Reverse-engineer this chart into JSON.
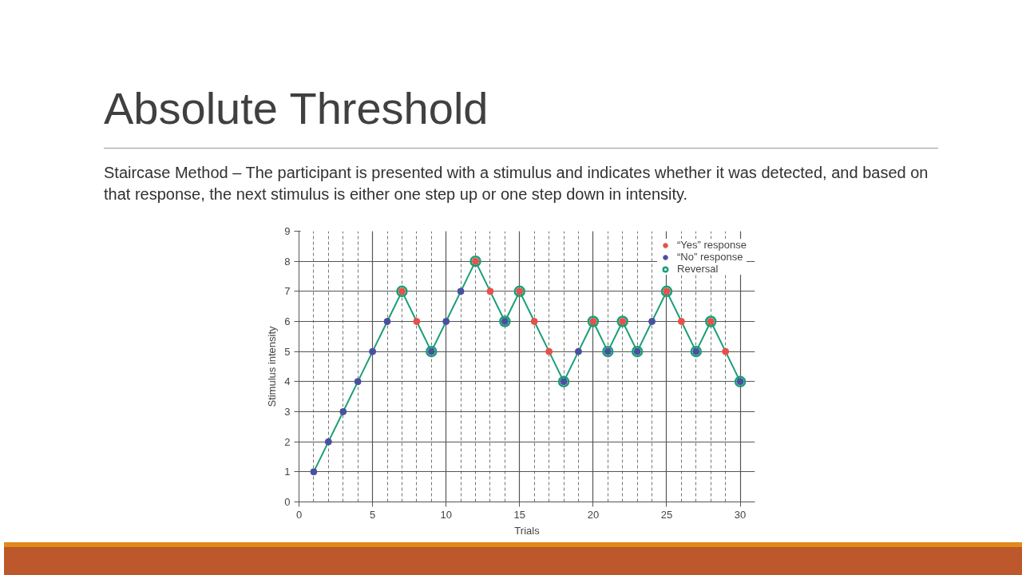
{
  "chart_data": {
    "type": "line",
    "title": "Absolute Threshold",
    "subtitle": "Staircase Method – The participant is presented with a stimulus and indicates whether it was detected, and based on that response, the next stimulus is either one step up or one step down in intensity.",
    "xlabel": "Trials",
    "ylabel": "Stimulus intensity",
    "xlim": [
      0,
      31
    ],
    "ylim": [
      0,
      9
    ],
    "xticks": [
      0,
      5,
      10,
      15,
      20,
      25,
      30
    ],
    "yticks": [
      0,
      1,
      2,
      3,
      4,
      5,
      6,
      7,
      8,
      9
    ],
    "grid": true,
    "legend": "top right",
    "series": [
      {
        "color": "#1a9e77",
        "marker": "none",
        "x": [
          1,
          2,
          3,
          4,
          5,
          6,
          7,
          8,
          9,
          10,
          11,
          12,
          13,
          14,
          15,
          16,
          17,
          18,
          19,
          20,
          21,
          22,
          23,
          24,
          25,
          26,
          27,
          28,
          29,
          30
        ],
        "values": [
          1,
          2,
          3,
          4,
          5,
          6,
          7,
          6,
          5,
          6,
          7,
          8,
          7,
          6,
          7,
          6,
          5,
          4,
          5,
          6,
          5,
          6,
          5,
          6,
          7,
          6,
          5,
          6,
          5,
          4
        ]
      },
      {
        "type": "scatter",
        "name": "“Yes” response",
        "color": "#e8504a",
        "marker": "circle",
        "x": [
          7,
          8,
          12,
          13,
          15,
          16,
          17,
          20,
          22,
          25,
          26,
          28,
          29
        ],
        "values": [
          7,
          6,
          8,
          7,
          7,
          6,
          5,
          6,
          6,
          7,
          6,
          6,
          5
        ]
      },
      {
        "type": "scatter",
        "name": "“No” response",
        "color": "#4a50a0",
        "marker": "circle",
        "x": [
          1,
          2,
          3,
          4,
          5,
          6,
          9,
          10,
          11,
          14,
          18,
          19,
          21,
          23,
          24,
          27,
          30
        ],
        "values": [
          1,
          2,
          3,
          4,
          5,
          6,
          5,
          6,
          7,
          6,
          4,
          5,
          5,
          5,
          6,
          5,
          4
        ]
      },
      {
        "type": "scatter",
        "name": "Reversal",
        "color": "#1a9e77",
        "marker": "circle_open",
        "x": [
          7,
          9,
          12,
          14,
          15,
          18,
          20,
          21,
          22,
          23,
          25,
          27,
          28,
          30
        ],
        "values": [
          7,
          5,
          8,
          6,
          7,
          4,
          6,
          5,
          6,
          5,
          7,
          5,
          6,
          4
        ]
      }
    ]
  }
}
